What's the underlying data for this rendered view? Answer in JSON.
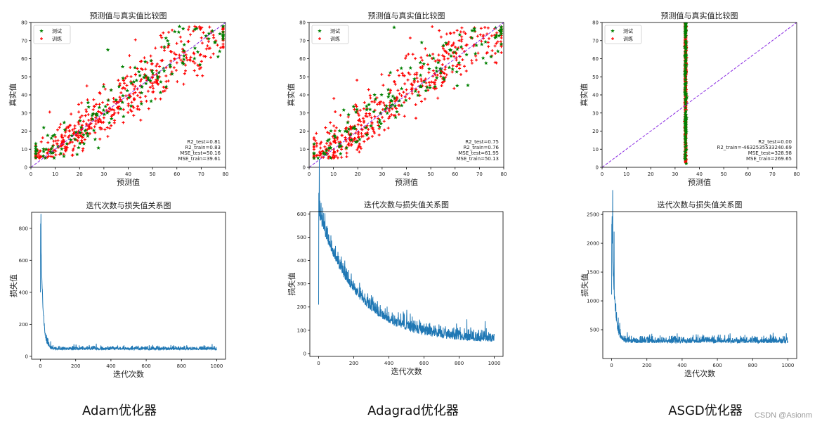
{
  "figure": {
    "captions": [
      "Adam优化器",
      "Adagrad优化器",
      "ASGD优化器"
    ],
    "watermark": "CSDN @Asionm"
  },
  "colors": {
    "test_points": "#008000",
    "train_points": "#ff0000",
    "diagonal": "#8a2be2",
    "loss_line": "#1f77b4",
    "axes": "#000000"
  },
  "chart_data": [
    {
      "type": "scatter",
      "title": "预测值与真实值比较图",
      "xlabel": "预测值",
      "ylabel": "真实值",
      "xlim": [
        0,
        80
      ],
      "ylim": [
        0,
        80
      ],
      "xticks": [
        0,
        10,
        20,
        30,
        40,
        50,
        60,
        70,
        80
      ],
      "yticks": [
        0,
        10,
        20,
        30,
        40,
        50,
        60,
        70,
        80
      ],
      "legend": {
        "position": "top-left",
        "entries": [
          "测试",
          "训练"
        ]
      },
      "series": [
        {
          "name": "测试",
          "marker": "star"
        },
        {
          "name": "训练",
          "marker": "plus"
        }
      ],
      "reference_line": "y = x",
      "annotation": [
        "R2_test=0.81",
        "R2_train=0.83",
        "MSE_test=50.16",
        "MSE_train=39.61"
      ],
      "pattern": {
        "spread": 7.2,
        "bias": 0,
        "vertical": false
      }
    },
    {
      "type": "scatter",
      "title": "预测值与真实值比较图",
      "xlabel": "预测值",
      "ylabel": "真实值",
      "xlim": [
        0,
        80
      ],
      "ylim": [
        0,
        80
      ],
      "xticks": [
        0,
        10,
        20,
        30,
        40,
        50,
        60,
        70,
        80
      ],
      "yticks": [
        0,
        10,
        20,
        30,
        40,
        50,
        60,
        70,
        80
      ],
      "legend": {
        "position": "top-left",
        "entries": [
          "测试",
          "训练"
        ]
      },
      "series": [
        {
          "name": "测试",
          "marker": "star"
        },
        {
          "name": "训练",
          "marker": "plus"
        }
      ],
      "reference_line": "y = x",
      "annotation": [
        "R2_test=0.75",
        "R2_train=0.76",
        "MSE_test=61.95",
        "MSE_train=50.13"
      ],
      "pattern": {
        "spread": 8.0,
        "bias": -1,
        "vertical": false
      }
    },
    {
      "type": "scatter",
      "title": "预测值与真实值比较图",
      "xlabel": "预测值",
      "ylabel": "真实值",
      "xlim": [
        0,
        80
      ],
      "ylim": [
        0,
        80
      ],
      "xticks": [
        0,
        10,
        20,
        30,
        40,
        50,
        60,
        70,
        80
      ],
      "yticks": [
        0,
        10,
        20,
        30,
        40,
        50,
        60,
        70,
        80
      ],
      "legend": {
        "position": "top-left",
        "entries": [
          "测试",
          "训练"
        ]
      },
      "series": [
        {
          "name": "测试",
          "marker": "star"
        },
        {
          "name": "训练",
          "marker": "plus"
        }
      ],
      "reference_line": "y = x",
      "annotation": [
        "R2_test=0.00",
        "R2_train=-4632535533240.69",
        "MSE_test=328.98",
        "MSE_train=269.65"
      ],
      "pattern": {
        "vertical_x": 34.3,
        "vertical": true
      }
    },
    {
      "type": "line",
      "title": "迭代次数与损失值关系图",
      "xlabel": "迭代次数",
      "ylabel": "损失值",
      "xlim": [
        0,
        1000
      ],
      "ylim": [
        0,
        900
      ],
      "xticks": [
        0,
        200,
        400,
        600,
        800,
        1000
      ],
      "yticks": [
        0,
        200,
        400,
        600,
        800
      ],
      "series": [
        {
          "start": 890,
          "settle": 45,
          "decay": 12,
          "noise": 12
        }
      ]
    },
    {
      "type": "line",
      "title": "迭代次数与损失值关系图",
      "xlabel": "迭代次数",
      "ylabel": "损失值",
      "xlim": [
        0,
        1000
      ],
      "ylim": [
        0,
        610
      ],
      "xticks": [
        0,
        200,
        400,
        600,
        800,
        1000
      ],
      "yticks": [
        0,
        100,
        200,
        300,
        400,
        500,
        600
      ],
      "series": [
        {
          "start": 600,
          "settle": 55,
          "decay": 220,
          "noise": 28
        }
      ]
    },
    {
      "type": "line",
      "title": "迭代次数与损失值关系图",
      "xlabel": "迭代次数",
      "ylabel": "损失值",
      "xlim": [
        0,
        1000
      ],
      "ylim": [
        0,
        2550
      ],
      "xticks": [
        0,
        200,
        400,
        600,
        800,
        1000
      ],
      "yticks": [
        500,
        1000,
        1500,
        2000,
        2500
      ],
      "series": [
        {
          "start": 2470,
          "settle": 290,
          "decay": 15,
          "noise": 55
        }
      ]
    }
  ]
}
